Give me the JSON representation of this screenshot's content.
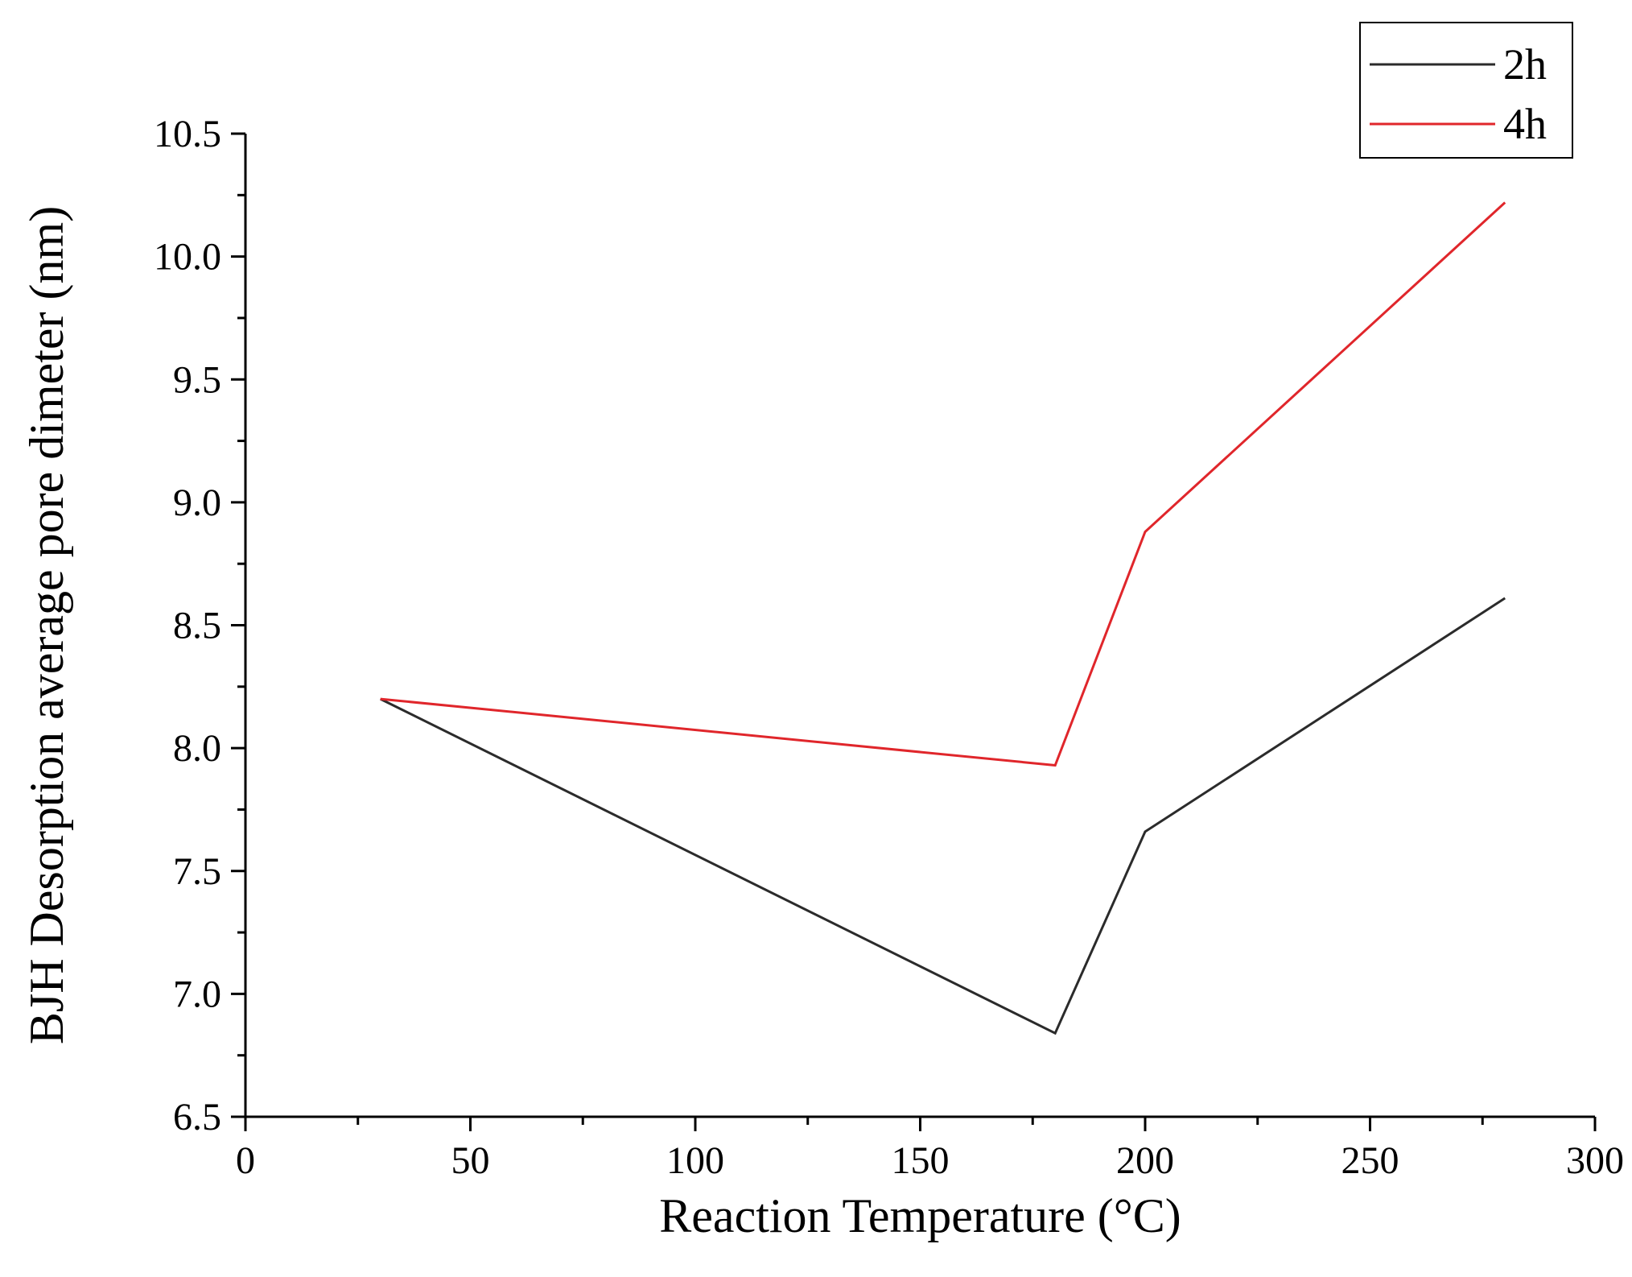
{
  "chart_data": {
    "type": "line",
    "xlabel": "Reaction Temperature (°C)",
    "ylabel": "BJH Desorption average pore dimeter (nm)",
    "xlim": [
      0,
      300
    ],
    "ylim": [
      6.5,
      10.5
    ],
    "x_ticks": [
      "0",
      "50",
      "100",
      "150",
      "200",
      "250",
      "300"
    ],
    "y_ticks": [
      "6.5",
      "7.0",
      "7.5",
      "8.0",
      "8.5",
      "9.0",
      "9.5",
      "10.0",
      "10.5"
    ],
    "x_minor_step": 25,
    "y_minor_step": 0.25,
    "grid": false,
    "legend_position": "top-right",
    "series": [
      {
        "name": "2h",
        "color": "#2b2b2b",
        "x": [
          30,
          180,
          200,
          280
        ],
        "y": [
          8.2,
          6.84,
          7.66,
          8.61
        ]
      },
      {
        "name": "4h",
        "color": "#e0262b",
        "x": [
          30,
          180,
          200,
          280
        ],
        "y": [
          8.2,
          7.93,
          8.88,
          10.22
        ]
      }
    ]
  }
}
